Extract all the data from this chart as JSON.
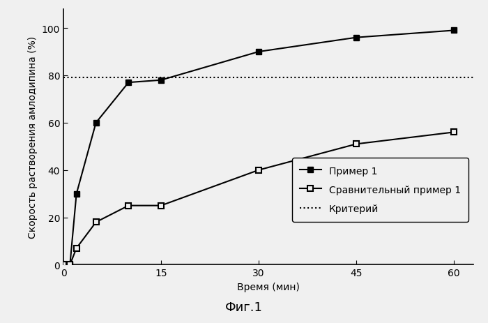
{
  "series1_x": [
    0,
    1,
    2,
    5,
    10,
    15,
    30,
    45,
    60
  ],
  "series1_y": [
    0,
    0,
    30,
    60,
    77,
    78,
    90,
    96,
    99
  ],
  "series2_x": [
    0,
    1,
    2,
    5,
    10,
    15,
    30,
    45,
    60
  ],
  "series2_y": [
    0,
    0,
    7,
    18,
    25,
    25,
    40,
    51,
    56
  ],
  "criterion_y": 79,
  "xlabel": "Время (мин)",
  "ylabel": "Скорость растворения амлодипина (%)",
  "legend1": "Пример 1",
  "legend2": "Сравнительный пример 1",
  "legend3": "Критерий",
  "figcaption": "Фиг.1",
  "xlim": [
    0,
    63
  ],
  "ylim": [
    0,
    108
  ],
  "xticks": [
    0,
    15,
    30,
    45,
    60
  ],
  "yticks": [
    0,
    20,
    40,
    60,
    80,
    100
  ],
  "line_color": "#000000",
  "background_color": "#f5f5f5",
  "axis_fontsize": 10,
  "tick_fontsize": 10,
  "legend_fontsize": 10,
  "caption_fontsize": 13
}
